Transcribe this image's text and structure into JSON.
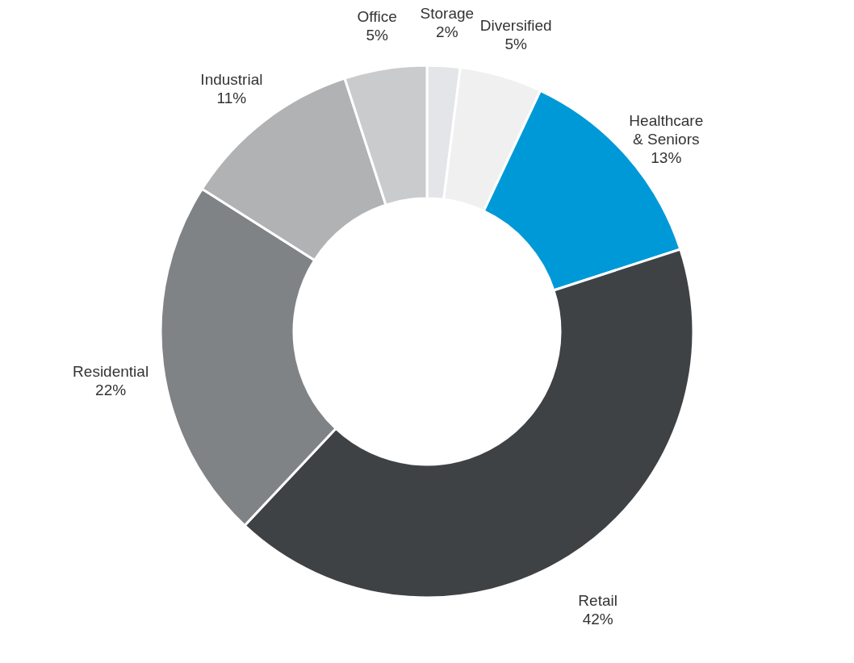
{
  "chart_data": {
    "type": "donut",
    "categories": [
      "Storage",
      "Diversified",
      "Healthcare & Seniors",
      "Retail",
      "Residential",
      "Industrial",
      "Office"
    ],
    "values": [
      2,
      5,
      13,
      42,
      22,
      11,
      5
    ],
    "value_labels": [
      "2%",
      "5%",
      "13%",
      "42%",
      "22%",
      "11%",
      "5%"
    ],
    "colors": [
      "#e3e5e8",
      "#f0f0f0",
      "#0099d8",
      "#3f4245",
      "#808386",
      "#b0b2b4",
      "#cacbcd"
    ]
  }
}
